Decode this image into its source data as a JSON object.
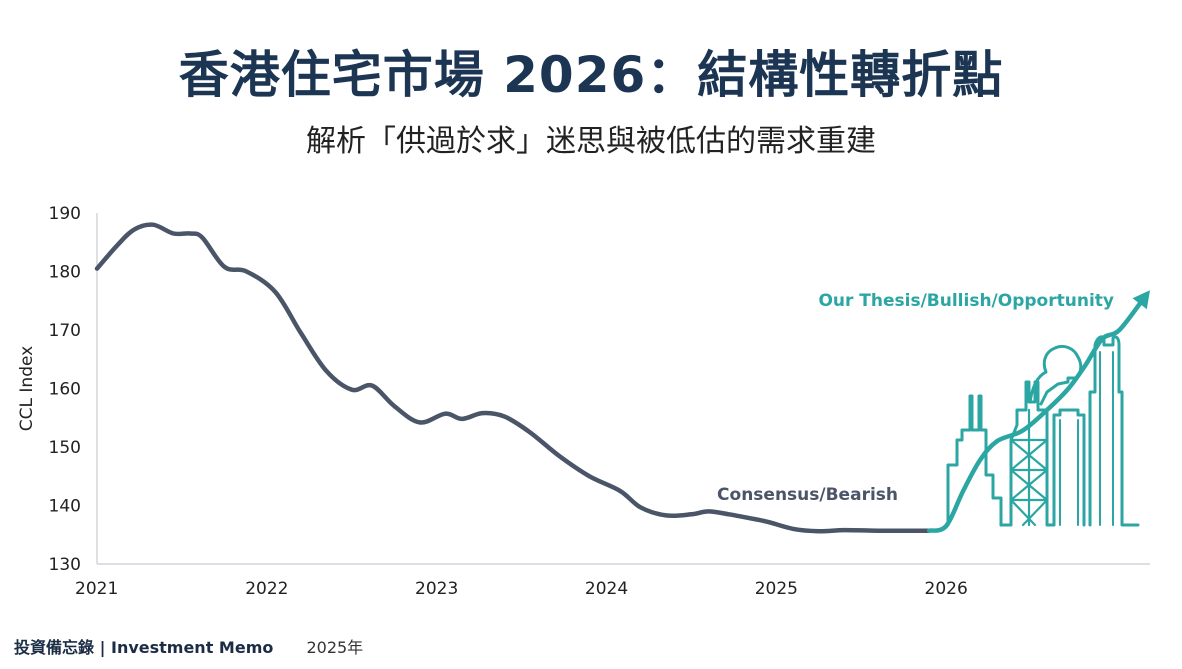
{
  "title": "香港住宅市場 2026：結構性轉折點",
  "subtitle": "解析「供過於求」迷思與被低估的需求重建",
  "footer": {
    "brand": "投資備忘錄 | Investment Memo",
    "year": "2025年"
  },
  "colors": {
    "consensus": "#4b5568",
    "thesis": "#2ba6a3",
    "title": "#1b3553",
    "axis": "#c8ccd2",
    "text": "#222222"
  },
  "chart_data": {
    "type": "line",
    "title": "",
    "xlabel": "",
    "ylabel": "CCL Index",
    "ylim": [
      130,
      190
    ],
    "xlim": [
      2021.0,
      2027.2
    ],
    "yticks": [
      130,
      140,
      150,
      160,
      170,
      180,
      190
    ],
    "xticks": [
      "2021",
      "2022",
      "2023",
      "2024",
      "2025",
      "2026"
    ],
    "grid": false,
    "series": [
      {
        "name": "Consensus/Bearish",
        "x": [
          2021.0,
          2021.12,
          2021.22,
          2021.33,
          2021.45,
          2021.55,
          2021.62,
          2021.75,
          2021.88,
          2022.05,
          2022.2,
          2022.35,
          2022.5,
          2022.62,
          2022.75,
          2022.9,
          2023.05,
          2023.15,
          2023.27,
          2023.4,
          2023.55,
          2023.72,
          2023.9,
          2024.08,
          2024.2,
          2024.35,
          2024.5,
          2024.6,
          2024.72,
          2024.85,
          2024.95,
          2025.1,
          2025.25,
          2025.4,
          2025.6,
          2025.8,
          2025.9
        ],
        "values": [
          180.5,
          184.5,
          187.2,
          188.0,
          186.5,
          186.5,
          185.8,
          180.8,
          180.0,
          176.5,
          169.5,
          163.0,
          159.8,
          160.5,
          157.0,
          154.2,
          155.7,
          154.8,
          155.8,
          155.2,
          152.5,
          148.5,
          145.0,
          142.5,
          139.7,
          138.3,
          138.5,
          139.0,
          138.5,
          137.8,
          137.2,
          136.0,
          135.6,
          135.8,
          135.7,
          135.7,
          135.7
        ]
      },
      {
        "name": "Our Thesis/Bullish/Opportunity",
        "x": [
          2025.9,
          2026.0,
          2026.1,
          2026.2,
          2026.3,
          2026.45,
          2026.6,
          2026.72,
          2026.82,
          2026.92,
          2027.02,
          2027.2
        ],
        "values": [
          135.7,
          136.5,
          142.5,
          147.8,
          151.0,
          152.8,
          156.5,
          160.0,
          164.0,
          168.5,
          170.0,
          176.8
        ]
      }
    ],
    "annotations": [
      "Our Thesis/Bullish/Opportunity",
      "Consensus/Bearish"
    ]
  }
}
